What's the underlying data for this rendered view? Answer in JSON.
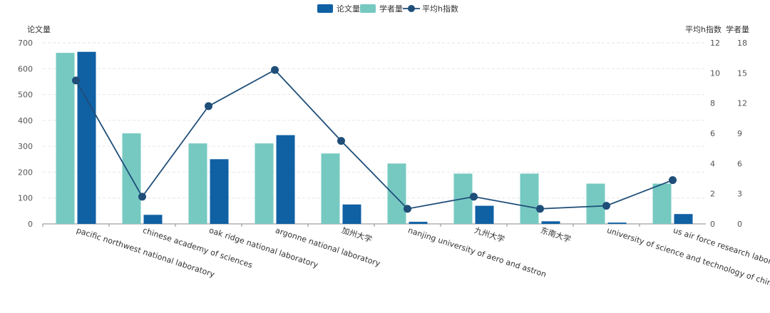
{
  "chart_data": {
    "type": "bar",
    "categories": [
      "pacific northwest national laboratory",
      "chinese academy of sciences",
      "oak ridge national laboratory",
      "argonne national laboratory",
      "加州大学",
      "nanjing university of aero and astron",
      "九州大学",
      "东南大学",
      "university of science and technology of china",
      "us air force research laboratory"
    ],
    "series": [
      {
        "name": "论文量",
        "kind": "bar",
        "axis": "left",
        "color": "#1060a4",
        "values": [
          665,
          35,
          250,
          343,
          75,
          8,
          70,
          10,
          5,
          38
        ]
      },
      {
        "name": "学者量",
        "kind": "bar",
        "axis": "right2",
        "color": "#76c9c1",
        "values": [
          17,
          9,
          8,
          8,
          7,
          6,
          5,
          5,
          4,
          4
        ]
      },
      {
        "name": "平均h指数",
        "kind": "line",
        "axis": "right1",
        "color": "#1f4e79",
        "values": [
          9.5,
          1.8,
          7.8,
          10.2,
          5.5,
          1.0,
          1.8,
          1.0,
          1.2,
          2.9
        ]
      }
    ],
    "axes": {
      "left": {
        "title": "论文量",
        "ylim": [
          0,
          700
        ],
        "ticks": [
          0,
          100,
          200,
          300,
          400,
          500,
          600,
          700
        ]
      },
      "right1": {
        "title": "平均h指数",
        "ylim": [
          0,
          12
        ],
        "ticks": [
          0,
          2,
          4,
          6,
          8,
          10,
          12
        ]
      },
      "right2": {
        "title": "学者量",
        "ylim": [
          0,
          18
        ],
        "ticks": [
          0,
          3,
          6,
          9,
          12,
          15,
          18
        ]
      }
    },
    "legend": {
      "position": "top-center",
      "entries": [
        "论文量",
        "学者量",
        "平均h指数"
      ]
    },
    "grid": true,
    "title": ""
  }
}
